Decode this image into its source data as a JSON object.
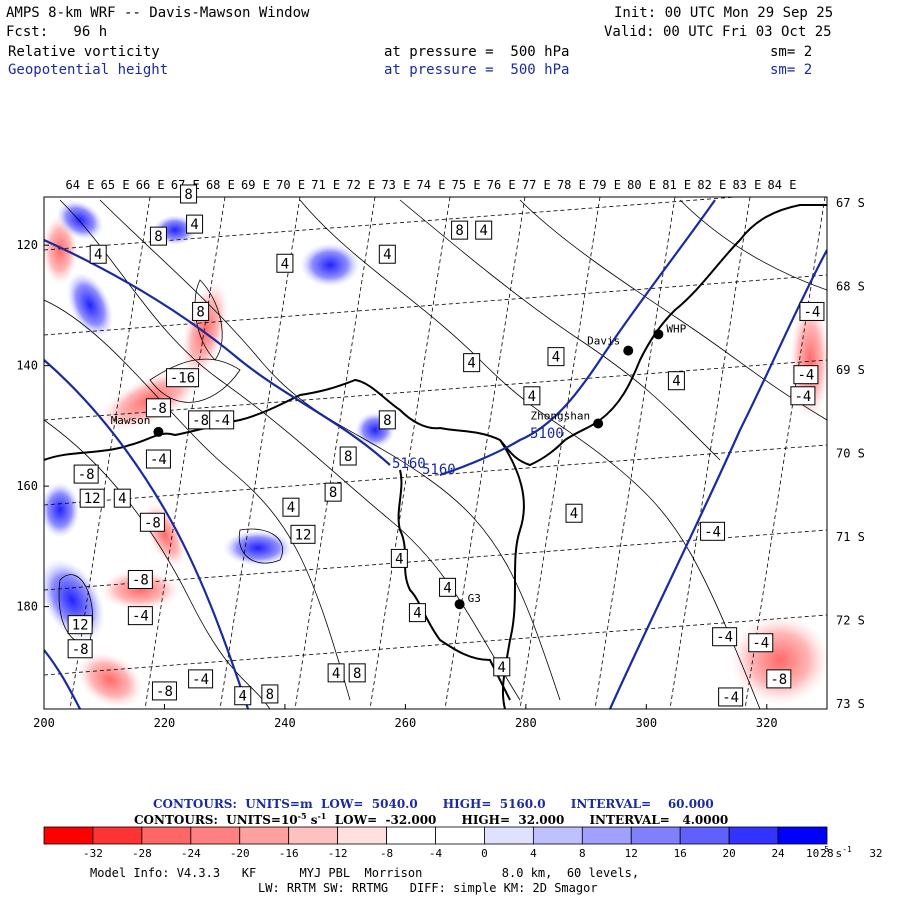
{
  "header": {
    "title": "AMPS 8-km WRF -- Davis-Mawson Window",
    "init": "Init: 00 UTC Mon 29 Sep 25",
    "fcst": "Fcst:   96 h",
    "valid": "Valid: 00 UTC Fri 03 Oct 25",
    "field1": {
      "name": "Relative vorticity",
      "level": "at pressure =  500 hPa",
      "sm": "sm= 2"
    },
    "field2": {
      "name": "Geopotential height",
      "level": "at pressure =  500 hPa",
      "sm": "sm= 2"
    }
  },
  "map": {
    "lon_labels": [
      "64 E",
      "65 E",
      "66 E",
      "67 E",
      "68 E",
      "69 E",
      "70 E",
      "71 E",
      "72 E",
      "73 E",
      "74 E",
      "75 E",
      "76 E",
      "77 E",
      "78 E",
      "79 E",
      "80 E",
      "81 E",
      "82 E",
      "83 E",
      "84 E"
    ],
    "lat_labels": [
      "67 S",
      "68 S",
      "69 S",
      "70 S",
      "71 S",
      "72 S",
      "73 S"
    ],
    "x_ticks": [
      "200",
      "220",
      "240",
      "260",
      "280",
      "300",
      "320"
    ],
    "y_ticks": [
      "120",
      "140",
      "160",
      "180"
    ],
    "stations": [
      {
        "name": "Davis",
        "x": 297,
        "y": 137.5
      },
      {
        "name": "WHP",
        "x": 302,
        "y": 134.8
      },
      {
        "name": "Zhongshan",
        "x": 292,
        "y": 149.6
      },
      {
        "name": "Mawson",
        "x": 219,
        "y": 151
      },
      {
        "name": "G3",
        "x": 269,
        "y": 179.6
      }
    ],
    "height_labels": [
      "5160",
      "5160",
      "5100"
    ],
    "vort_labels": [
      {
        "t": "8",
        "x": 224,
        "y": 111.5
      },
      {
        "t": "8",
        "x": 219,
        "y": 118.5
      },
      {
        "t": "4",
        "x": 225,
        "y": 116.5
      },
      {
        "t": "4",
        "x": 209,
        "y": 121.5
      },
      {
        "t": "4",
        "x": 240,
        "y": 123
      },
      {
        "t": "4",
        "x": 257,
        "y": 121.5
      },
      {
        "t": "8",
        "x": 269,
        "y": 117.5
      },
      {
        "t": "4",
        "x": 273,
        "y": 117.5
      },
      {
        "t": "8",
        "x": 226,
        "y": 131
      },
      {
        "t": "-16",
        "x": 223,
        "y": 142
      },
      {
        "t": "-8",
        "x": 219,
        "y": 147
      },
      {
        "t": "-8",
        "x": 226,
        "y": 149
      },
      {
        "t": "-4",
        "x": 229.5,
        "y": 149
      },
      {
        "t": "4",
        "x": 271,
        "y": 139.5
      },
      {
        "t": "4",
        "x": 281,
        "y": 145
      },
      {
        "t": "8",
        "x": 257,
        "y": 149
      },
      {
        "t": "-4",
        "x": 219,
        "y": 155.5
      },
      {
        "t": "8",
        "x": 250.5,
        "y": 155
      },
      {
        "t": "-8",
        "x": 207,
        "y": 158
      },
      {
        "t": "12",
        "x": 208,
        "y": 162
      },
      {
        "t": "4",
        "x": 213,
        "y": 162
      },
      {
        "t": "4",
        "x": 241,
        "y": 163.5
      },
      {
        "t": "8",
        "x": 248,
        "y": 161
      },
      {
        "t": "-8",
        "x": 218,
        "y": 166
      },
      {
        "t": "12",
        "x": 243,
        "y": 168
      },
      {
        "t": "4",
        "x": 259,
        "y": 172
      },
      {
        "t": "4",
        "x": 267,
        "y": 176.8
      },
      {
        "t": "4",
        "x": 288,
        "y": 164.5
      },
      {
        "t": "-8",
        "x": 216,
        "y": 175.5
      },
      {
        "t": "4",
        "x": 262,
        "y": 181
      },
      {
        "t": "4",
        "x": 276,
        "y": 190
      },
      {
        "t": "12",
        "x": 206,
        "y": 183
      },
      {
        "t": "-4",
        "x": 216,
        "y": 181.5
      },
      {
        "t": "-8",
        "x": 206,
        "y": 187
      },
      {
        "t": "-8",
        "x": 220,
        "y": 194
      },
      {
        "t": "-4",
        "x": 226,
        "y": 192
      },
      {
        "t": "4",
        "x": 233,
        "y": 194.8
      },
      {
        "t": "8",
        "x": 237.5,
        "y": 194.5
      },
      {
        "t": "4",
        "x": 248.5,
        "y": 191
      },
      {
        "t": "8",
        "x": 252,
        "y": 191
      },
      {
        "t": "4",
        "x": 285,
        "y": 138.5
      },
      {
        "t": "4",
        "x": 305,
        "y": 142.5
      },
      {
        "t": "-4",
        "x": 327.5,
        "y": 131
      },
      {
        "t": "-4",
        "x": 326.5,
        "y": 141.5
      },
      {
        "t": "-4",
        "x": 326,
        "y": 145
      },
      {
        "t": "-4",
        "x": 311,
        "y": 167.5
      },
      {
        "t": "-4",
        "x": 313,
        "y": 185
      },
      {
        "t": "-4",
        "x": 319,
        "y": 186
      },
      {
        "t": "-4",
        "x": 314,
        "y": 195
      },
      {
        "t": "-8",
        "x": 322,
        "y": 192
      }
    ]
  },
  "footer": {
    "contours_height": {
      "label": "CONTOURS:  UNITS=m  LOW=  5040.0",
      "high": "HIGH=  5160.0",
      "interval": "INTERVAL=    60.000"
    },
    "contours_vort": {
      "label": "CONTOURS:  UNITS=10",
      "exp": "-5",
      "s": " s",
      "sexp": "-1",
      "low": "  LOW=  -32.000",
      "high": "HIGH=  32.000",
      "interval": "INTERVAL=   4.0000"
    },
    "colorbar_labels": [
      "-32",
      "-28",
      "-24",
      "-20",
      "-16",
      "-12",
      "-8",
      "-4",
      "0",
      "4",
      "8",
      "12",
      "16",
      "20",
      "24",
      "28",
      "32"
    ],
    "colorbar_unit": "10",
    "colorbar_unit_exp": "-5",
    "colorbar_unit_s": "s",
    "colorbar_unit_sexp": "-1",
    "model_info": "Model Info: V4.3.3   KF      MYJ PBL  Morrison           8.0 km,  60 levels,",
    "model_info2": "LW: RRTM SW: RRTMG   DIFF: simple KM: 2D Smagor"
  },
  "colors": {
    "colorbar": [
      "#ff0000",
      "#ff3333",
      "#ff6666",
      "#ff8080",
      "#ffa0a0",
      "#ffc0c0",
      "#ffe0e0",
      "#ffffff",
      "#ffffff",
      "#e0e0ff",
      "#c0c0ff",
      "#a0a0ff",
      "#8080ff",
      "#6060ff",
      "#3333ff",
      "#0000ff"
    ],
    "height_line": "#1a2aa0"
  }
}
